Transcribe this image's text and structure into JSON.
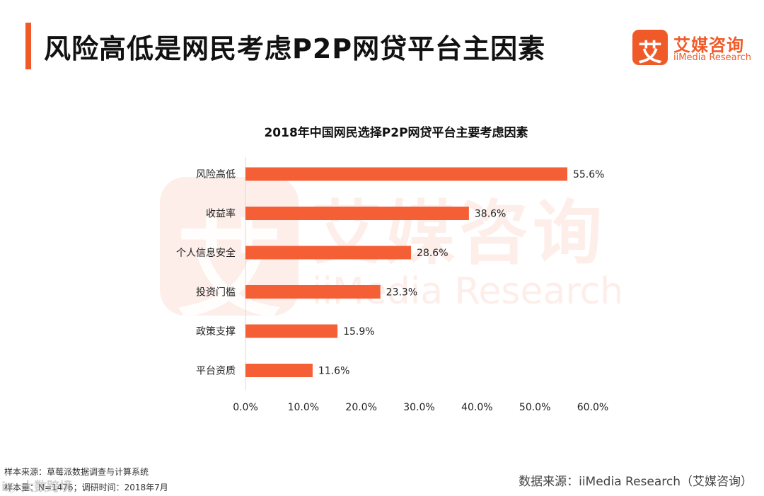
{
  "header": {
    "title": "风险高低是网民考虑P2P网贷平台主因素",
    "accent_color": "#f05a28"
  },
  "logo": {
    "mark": "艾",
    "name_cn": "艾媒咨询",
    "name_en": "iiMedia Research"
  },
  "watermark": {
    "mark": "艾",
    "name_cn": "艾媒咨询",
    "name_en": "iiMedia Research",
    "bottom_text": "i◎ 大数跨境"
  },
  "chart_data": {
    "type": "bar",
    "orientation": "horizontal",
    "title": "2018年中国网民选择P2P网贷平台主要考虑因素",
    "categories": [
      "风险高低",
      "收益率",
      "个人信息安全",
      "投资门槛",
      "政策支撑",
      "平台资质"
    ],
    "values": [
      55.6,
      38.6,
      28.6,
      23.3,
      15.9,
      11.6
    ],
    "value_labels": [
      "55.6%",
      "38.6%",
      "28.6%",
      "23.3%",
      "15.9%",
      "11.6%"
    ],
    "xlim": [
      0,
      60
    ],
    "xticks": [
      "0.0%",
      "10.0%",
      "20.0%",
      "30.0%",
      "40.0%",
      "50.0%",
      "60.0%"
    ],
    "bar_color": "#f55f36",
    "grid": false
  },
  "footer": {
    "sample_source": "样本来源：草莓派数据调查与计算系统",
    "sample_size": "样本量：N=1476；调研时间：2018年7月",
    "data_source": "数据来源：iiMedia Research（艾媒咨询）"
  }
}
